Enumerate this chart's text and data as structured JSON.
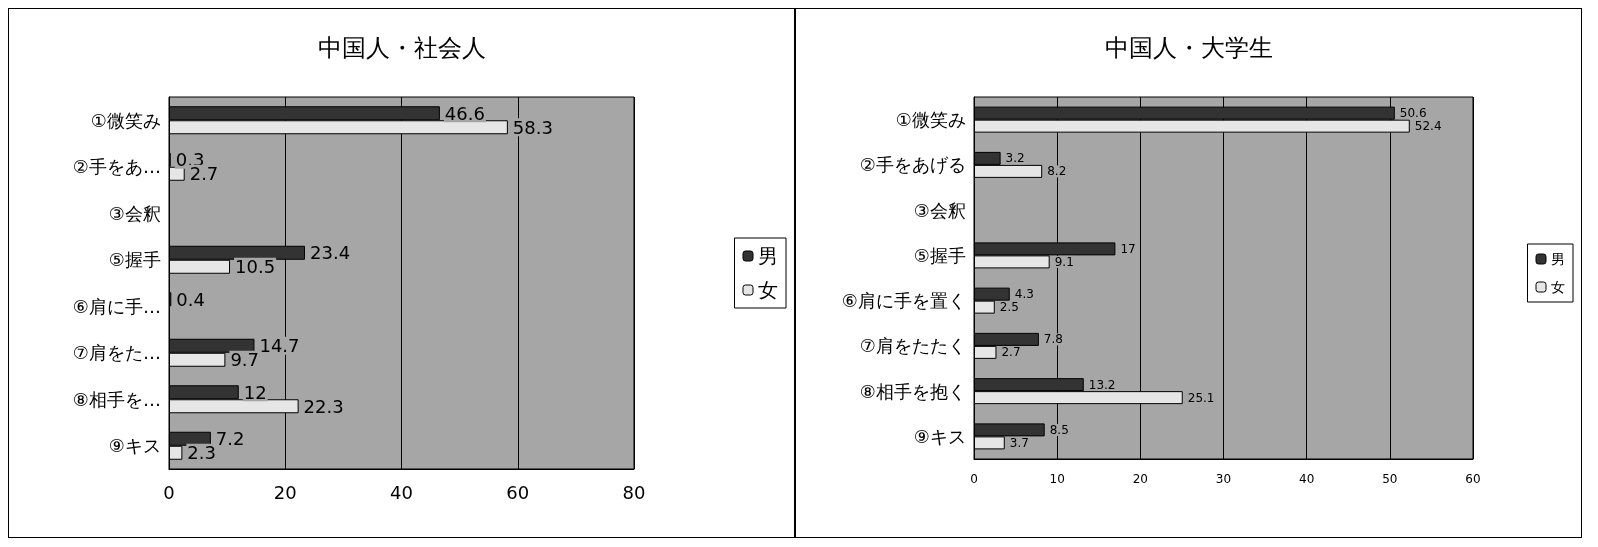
{
  "chart_data": [
    {
      "type": "bar",
      "orientation": "horizontal",
      "title": "中国人・社会人",
      "categories": [
        "①微笑み",
        "②手をあ…",
        "③会釈",
        "⑤握手",
        "⑥肩に手…",
        "⑦肩をた…",
        "⑧相手を…",
        "⑨キス"
      ],
      "series": [
        {
          "name": "男",
          "color": "#333333",
          "values": [
            46.6,
            0.3,
            null,
            23.4,
            0.4,
            14.7,
            12,
            7.2
          ]
        },
        {
          "name": "女",
          "color": "#e6e6e6",
          "values": [
            58.3,
            2.7,
            null,
            10.5,
            null,
            9.7,
            22.3,
            2.3
          ]
        }
      ],
      "xlim": [
        0,
        80
      ],
      "xticks": [
        0,
        20,
        40,
        60,
        80
      ],
      "grid": "x",
      "legend": "right",
      "data_labels": true
    },
    {
      "type": "bar",
      "orientation": "horizontal",
      "title": "中国人・大学生",
      "categories": [
        "①微笑み",
        "②手をあげる",
        "③会釈",
        "⑤握手",
        "⑥肩に手を置く",
        "⑦肩をたたく",
        "⑧相手を抱く",
        "⑨キス"
      ],
      "series": [
        {
          "name": "男",
          "color": "#333333",
          "values": [
            50.6,
            3.2,
            null,
            17,
            4.3,
            7.8,
            13.2,
            8.5
          ]
        },
        {
          "name": "女",
          "color": "#e6e6e6",
          "values": [
            52.4,
            8.2,
            null,
            9.1,
            2.5,
            2.7,
            25.1,
            3.7
          ]
        }
      ],
      "xlim": [
        0,
        60
      ],
      "xticks": [
        0,
        10,
        20,
        30,
        40,
        50,
        60
      ],
      "grid": "x",
      "legend": "right",
      "data_labels": true
    }
  ]
}
